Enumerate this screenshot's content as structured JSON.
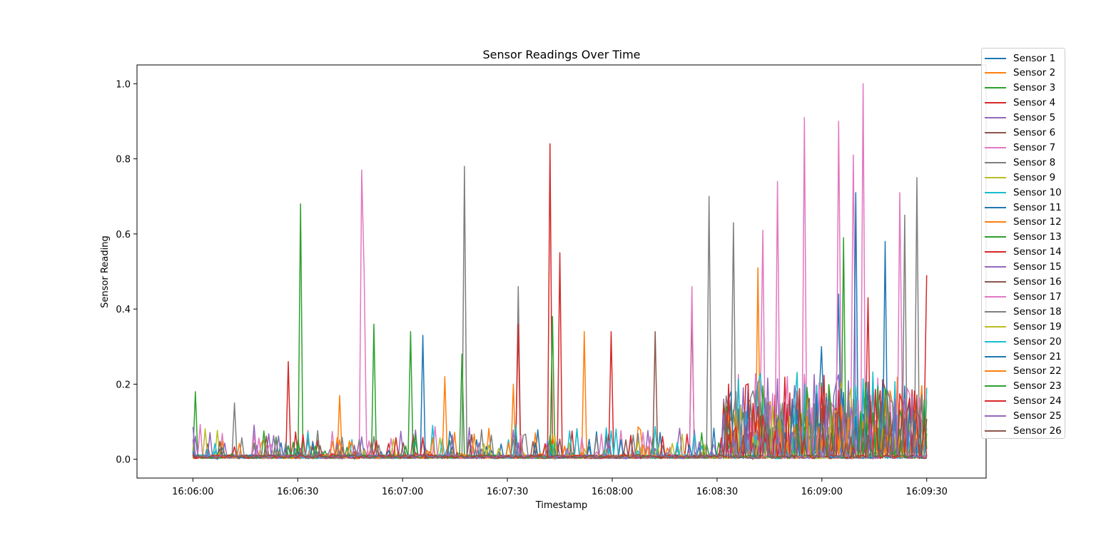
{
  "chart_data": {
    "type": "line",
    "title": "Sensor Readings Over Time",
    "xlabel": "Timestamp",
    "ylabel": "Sensor Reading",
    "x_range": [
      "16:06:00",
      "16:09:30"
    ],
    "xlim": [
      "16:05:44",
      "16:09:47"
    ],
    "ylim": [
      -0.05,
      1.05
    ],
    "x_ticks": [
      "16:06:00",
      "16:06:30",
      "16:07:00",
      "16:07:30",
      "16:08:00",
      "16:08:30",
      "16:09:00",
      "16:09:30"
    ],
    "y_ticks": [
      "0.0",
      "0.2",
      "0.4",
      "0.6",
      "0.8",
      "1.0"
    ],
    "grid": false,
    "legend_position": "upper-right, outside plot",
    "series": [
      {
        "name": "Sensor 1",
        "color": "#1f77b4",
        "peaks": [
          [
            "16:09:05",
            0.44
          ],
          [
            "16:09:00",
            0.3
          ]
        ]
      },
      {
        "name": "Sensor 2",
        "color": "#ff7f0e",
        "peaks": [
          [
            "16:08:42",
            0.51
          ],
          [
            "16:07:52",
            0.34
          ],
          [
            "16:06:42",
            0.17
          ]
        ]
      },
      {
        "name": "Sensor 3",
        "color": "#2ca02c",
        "peaks": [
          [
            "16:06:01",
            0.18
          ],
          [
            "16:06:31",
            0.68
          ],
          [
            "16:07:02",
            0.34
          ],
          [
            "16:09:06",
            0.59
          ]
        ]
      },
      {
        "name": "Sensor 4",
        "color": "#d62728",
        "peaks": [
          [
            "16:07:42",
            0.84
          ],
          [
            "16:07:45",
            0.55
          ],
          [
            "16:06:27",
            0.26
          ],
          [
            "16:09:30",
            0.49
          ]
        ]
      },
      {
        "name": "Sensor 5",
        "color": "#9467bd",
        "peaks": []
      },
      {
        "name": "Sensor 6",
        "color": "#8c564b",
        "peaks": [
          [
            "16:08:23",
            0.39
          ],
          [
            "16:08:12",
            0.34
          ]
        ]
      },
      {
        "name": "Sensor 7",
        "color": "#e377c2",
        "peaks": [
          [
            "16:06:48",
            0.77
          ],
          [
            "16:06:49",
            0.5
          ],
          [
            "16:08:55",
            0.91
          ],
          [
            "16:09:12",
            1.0
          ],
          [
            "16:09:05",
            0.9
          ],
          [
            "16:09:09",
            0.81
          ],
          [
            "16:08:23",
            0.46
          ]
        ]
      },
      {
        "name": "Sensor 8",
        "color": "#7f7f7f",
        "peaks": [
          [
            "16:07:18",
            0.78
          ],
          [
            "16:08:28",
            0.7
          ],
          [
            "16:08:35",
            0.63
          ],
          [
            "16:09:27",
            0.75
          ],
          [
            "16:07:33",
            0.46
          ]
        ]
      },
      {
        "name": "Sensor 9",
        "color": "#bcbd22",
        "peaks": []
      },
      {
        "name": "Sensor 10",
        "color": "#17becf",
        "peaks": []
      },
      {
        "name": "Sensor 11",
        "color": "#1f77b4",
        "peaks": [
          [
            "16:09:10",
            0.71
          ],
          [
            "16:09:18",
            0.58
          ],
          [
            "16:07:06",
            0.33
          ]
        ]
      },
      {
        "name": "Sensor 12",
        "color": "#ff7f0e",
        "peaks": [
          [
            "16:07:32",
            0.2
          ],
          [
            "16:07:12",
            0.22
          ]
        ]
      },
      {
        "name": "Sensor 13",
        "color": "#2ca02c",
        "peaks": [
          [
            "16:06:52",
            0.36
          ],
          [
            "16:07:17",
            0.28
          ],
          [
            "16:07:43",
            0.38
          ]
        ]
      },
      {
        "name": "Sensor 14",
        "color": "#d62728",
        "peaks": [
          [
            "16:07:33",
            0.36
          ],
          [
            "16:08:00",
            0.34
          ],
          [
            "16:09:13",
            0.43
          ]
        ]
      },
      {
        "name": "Sensor 15",
        "color": "#9467bd",
        "peaks": []
      },
      {
        "name": "Sensor 16",
        "color": "#8c564b",
        "peaks": []
      },
      {
        "name": "Sensor 17",
        "color": "#e377c2",
        "peaks": [
          [
            "16:08:43",
            0.61
          ],
          [
            "16:09:22",
            0.71
          ],
          [
            "16:08:47",
            0.74
          ]
        ]
      },
      {
        "name": "Sensor 18",
        "color": "#7f7f7f",
        "peaks": [
          [
            "16:06:12",
            0.15
          ],
          [
            "16:09:24",
            0.65
          ]
        ]
      },
      {
        "name": "Sensor 19",
        "color": "#bcbd22",
        "peaks": []
      },
      {
        "name": "Sensor 20",
        "color": "#17becf",
        "peaks": []
      },
      {
        "name": "Sensor 21",
        "color": "#1f77b4",
        "peaks": []
      },
      {
        "name": "Sensor 22",
        "color": "#ff7f0e",
        "peaks": []
      },
      {
        "name": "Sensor 23",
        "color": "#2ca02c",
        "peaks": []
      },
      {
        "name": "Sensor 24",
        "color": "#d62728",
        "peaks": []
      },
      {
        "name": "Sensor 25",
        "color": "#9467bd",
        "peaks": []
      },
      {
        "name": "Sensor 26",
        "color": "#8c564b",
        "peaks": []
      }
    ]
  }
}
